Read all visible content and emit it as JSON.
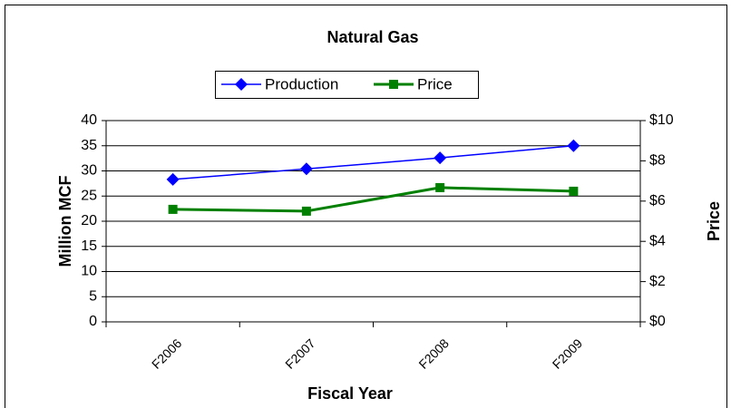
{
  "chart_data": {
    "type": "line",
    "title": "Natural Gas",
    "x_label": "Fiscal Year",
    "y_label": "Million MCF",
    "y2_label": "Price",
    "categories": [
      "F2006",
      "F2007",
      "F2008",
      "F2009"
    ],
    "series": [
      {
        "name": "Production",
        "color": "#0000ff",
        "marker": "diamond",
        "values": [
          28.3,
          30.4,
          32.6,
          35.0
        ]
      },
      {
        "name": "Price",
        "color": "#008000",
        "marker": "square",
        "axis": "y2",
        "values": [
          5.59,
          5.5,
          6.67,
          6.49
        ]
      }
    ],
    "ylim": [
      0,
      40
    ],
    "yticks": [
      0,
      5,
      10,
      15,
      20,
      25,
      30,
      35,
      40
    ],
    "y2lim": [
      0,
      10
    ],
    "y2ticks": [
      {
        "value": 0,
        "label": "$0"
      },
      {
        "value": 2,
        "label": "$2"
      },
      {
        "value": 4,
        "label": "$4"
      },
      {
        "value": 6,
        "label": "$6"
      },
      {
        "value": 8,
        "label": "$8"
      },
      {
        "value": 10,
        "label": "$10"
      }
    ],
    "grid": true,
    "legend": "top"
  }
}
